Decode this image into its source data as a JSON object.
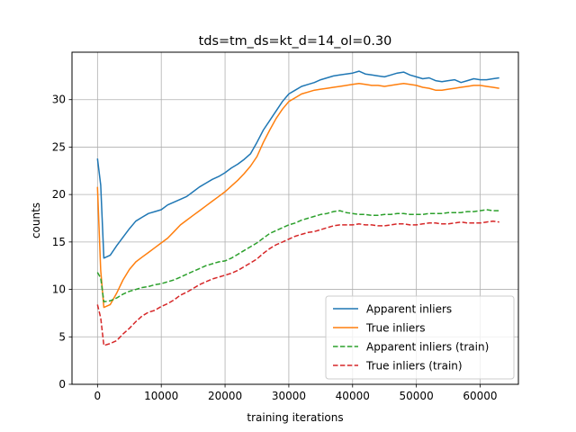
{
  "chart_data": {
    "type": "line",
    "title": "tds=tm_ds=kt_d=14_ol=0.30",
    "xlabel": "training iterations",
    "ylabel": "counts",
    "xlim": [
      -4000,
      66000
    ],
    "ylim": [
      0,
      35
    ],
    "xticks": [
      0,
      10000,
      20000,
      30000,
      40000,
      50000,
      60000
    ],
    "yticks": [
      0,
      5,
      10,
      15,
      20,
      25,
      30
    ],
    "grid": true,
    "legend_position": "lower right",
    "x": [
      0,
      500,
      1000,
      2000,
      3000,
      4000,
      5000,
      6000,
      7000,
      8000,
      9000,
      10000,
      11000,
      12000,
      13000,
      14000,
      15000,
      16000,
      17000,
      18000,
      19000,
      20000,
      21000,
      22000,
      23000,
      24000,
      25000,
      26000,
      27000,
      28000,
      29000,
      30000,
      31000,
      32000,
      33000,
      34000,
      35000,
      36000,
      37000,
      38000,
      39000,
      40000,
      41000,
      42000,
      43000,
      44000,
      45000,
      46000,
      47000,
      48000,
      49000,
      50000,
      51000,
      52000,
      53000,
      54000,
      55000,
      56000,
      57000,
      58000,
      59000,
      60000,
      61000,
      62000,
      63000
    ],
    "series": [
      {
        "name": "Apparent inliers",
        "color": "#1f77b4",
        "style": "solid",
        "values": [
          23.8,
          21.0,
          13.3,
          13.6,
          14.6,
          15.5,
          16.4,
          17.2,
          17.6,
          18.0,
          18.2,
          18.4,
          18.9,
          19.2,
          19.5,
          19.8,
          20.3,
          20.8,
          21.2,
          21.6,
          21.9,
          22.3,
          22.8,
          23.2,
          23.7,
          24.3,
          25.5,
          26.8,
          27.8,
          28.8,
          29.8,
          30.6,
          31.0,
          31.4,
          31.6,
          31.8,
          32.1,
          32.3,
          32.5,
          32.6,
          32.7,
          32.8,
          33.0,
          32.7,
          32.6,
          32.5,
          32.4,
          32.6,
          32.8,
          32.9,
          32.6,
          32.4,
          32.2,
          32.3,
          32.0,
          31.9,
          32.0,
          32.1,
          31.8,
          32.0,
          32.2,
          32.1,
          32.1,
          32.2,
          32.3
        ]
      },
      {
        "name": "True inliers",
        "color": "#ff7f0e",
        "style": "solid",
        "values": [
          20.8,
          12.0,
          8.1,
          8.4,
          9.6,
          11.0,
          12.1,
          12.9,
          13.4,
          13.9,
          14.4,
          14.9,
          15.4,
          16.1,
          16.8,
          17.3,
          17.8,
          18.3,
          18.8,
          19.3,
          19.8,
          20.3,
          20.9,
          21.5,
          22.2,
          23.0,
          24.0,
          25.5,
          26.8,
          28.0,
          29.0,
          29.8,
          30.2,
          30.6,
          30.8,
          31.0,
          31.1,
          31.2,
          31.3,
          31.4,
          31.5,
          31.6,
          31.7,
          31.6,
          31.5,
          31.5,
          31.4,
          31.5,
          31.6,
          31.7,
          31.6,
          31.5,
          31.3,
          31.2,
          31.0,
          31.0,
          31.1,
          31.2,
          31.3,
          31.4,
          31.5,
          31.5,
          31.4,
          31.3,
          31.2
        ]
      },
      {
        "name": "Apparent inliers (train)",
        "color": "#2ca02c",
        "style": "dashed",
        "values": [
          11.8,
          11.2,
          8.7,
          8.8,
          9.1,
          9.5,
          9.8,
          10.0,
          10.2,
          10.3,
          10.5,
          10.6,
          10.8,
          11.0,
          11.3,
          11.6,
          11.9,
          12.2,
          12.5,
          12.7,
          12.9,
          13.0,
          13.3,
          13.7,
          14.1,
          14.5,
          14.9,
          15.4,
          15.9,
          16.2,
          16.5,
          16.8,
          17.0,
          17.3,
          17.5,
          17.7,
          17.9,
          18.0,
          18.2,
          18.3,
          18.1,
          18.0,
          17.9,
          17.9,
          17.8,
          17.8,
          17.9,
          17.9,
          18.0,
          18.0,
          17.9,
          17.9,
          17.9,
          18.0,
          18.0,
          18.0,
          18.1,
          18.1,
          18.1,
          18.2,
          18.2,
          18.3,
          18.4,
          18.3,
          18.3
        ]
      },
      {
        "name": "True inliers (train)",
        "color": "#d62728",
        "style": "dashed",
        "values": [
          8.4,
          7.0,
          4.1,
          4.3,
          4.6,
          5.3,
          5.9,
          6.6,
          7.2,
          7.6,
          7.8,
          8.2,
          8.5,
          8.9,
          9.4,
          9.7,
          10.1,
          10.5,
          10.8,
          11.1,
          11.3,
          11.5,
          11.7,
          12.0,
          12.4,
          12.8,
          13.2,
          13.8,
          14.3,
          14.7,
          15.0,
          15.3,
          15.6,
          15.8,
          16.0,
          16.1,
          16.3,
          16.5,
          16.7,
          16.8,
          16.8,
          16.8,
          16.9,
          16.8,
          16.8,
          16.7,
          16.7,
          16.8,
          16.9,
          16.9,
          16.8,
          16.8,
          16.9,
          17.0,
          17.0,
          16.9,
          16.9,
          17.0,
          17.1,
          17.0,
          17.0,
          17.0,
          17.1,
          17.2,
          17.1
        ]
      }
    ]
  }
}
